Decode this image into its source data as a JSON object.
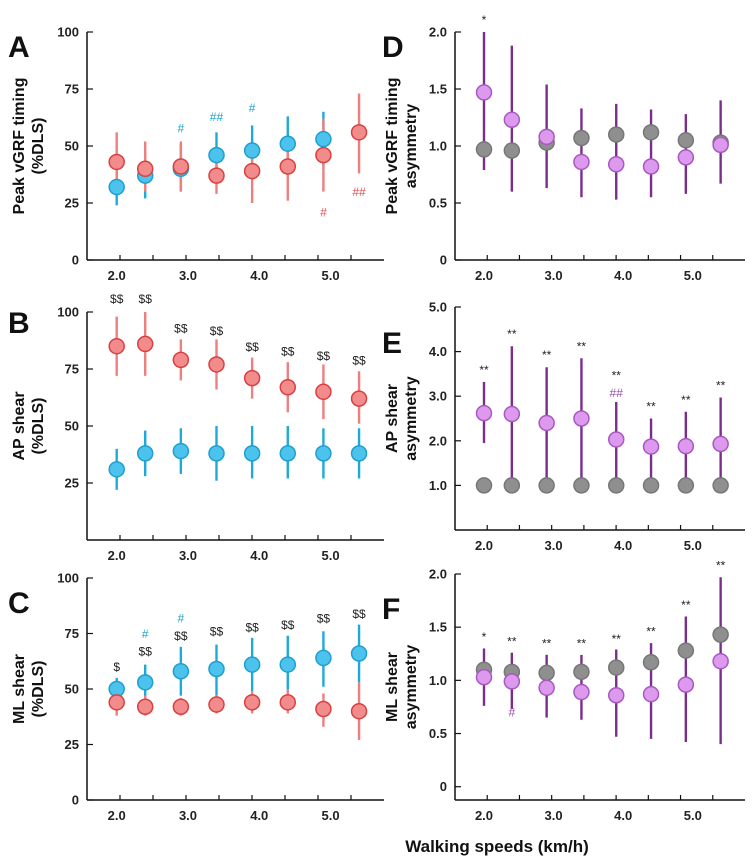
{
  "figure": {
    "x_axis_title": "Walking speeds (km/h)",
    "x_tick_labels": [
      "2.0",
      "3.0",
      "4.0",
      "5.0"
    ],
    "x_tick_values": [
      2.0,
      3.0,
      4.0,
      5.0
    ],
    "colors": {
      "blue_face": "#4cc3ec",
      "blue_edge": "#1f9fd0",
      "blue_bar": "#1eaad8",
      "red_face": "#f28b8b",
      "red_edge": "#d94040",
      "red_bar": "#ee7f7f",
      "purple_face": "#dd99ee",
      "purple_edge": "#a858c0",
      "purple_bar": "#7a2e8c",
      "gray_face": "#8f8f8f",
      "gray_edge": "#777777",
      "black_text": "#222222",
      "teal_text": "#1aa2cf",
      "red_text": "#e05050",
      "purple_text": "#9a4fb0"
    }
  },
  "chart_data": [
    {
      "panel": "A",
      "type": "scatter",
      "ylabel": [
        "Peak vGRF timing",
        "(%DLS)"
      ],
      "x": [
        2.0,
        2.4,
        2.9,
        3.4,
        3.9,
        4.4,
        4.9,
        5.4
      ],
      "ylim": [
        0,
        100
      ],
      "yticks": [
        0,
        25,
        50,
        75,
        100
      ],
      "ytick_labels": [
        "0",
        "25",
        "50",
        "75",
        "100"
      ],
      "series": [
        {
          "name": "blue",
          "color": "blue",
          "values": [
            32,
            37,
            40,
            46,
            48,
            51,
            53,
            null
          ],
          "low": [
            24,
            27,
            30,
            36,
            36,
            38,
            41,
            null
          ],
          "high": [
            40,
            47,
            51,
            56,
            59,
            63,
            65,
            null
          ]
        },
        {
          "name": "red",
          "color": "red",
          "values": [
            43,
            40,
            41,
            37,
            39,
            41,
            46,
            56
          ],
          "low": [
            33,
            30,
            30,
            29,
            25,
            26,
            30,
            38
          ],
          "high": [
            56,
            52,
            52,
            46,
            51,
            53,
            62,
            73
          ]
        }
      ],
      "annotations": [
        {
          "text": "#",
          "color": "teal",
          "x": 2.9,
          "y": 56
        },
        {
          "text": "##",
          "color": "teal",
          "x": 3.4,
          "y": 61
        },
        {
          "text": "#",
          "color": "teal",
          "x": 3.9,
          "y": 65
        },
        {
          "text": "#",
          "color": "red",
          "x": 4.9,
          "y": 19
        },
        {
          "text": "##",
          "color": "red",
          "x": 5.4,
          "y": 28
        }
      ]
    },
    {
      "panel": "B",
      "type": "scatter",
      "ylabel": [
        "AP shear",
        "(%DLS)"
      ],
      "x": [
        2.0,
        2.4,
        2.9,
        3.4,
        3.9,
        4.4,
        4.9,
        5.4
      ],
      "ylim": [
        0,
        100
      ],
      "yticks": [
        25,
        50,
        75,
        100
      ],
      "ytick_labels": [
        "25",
        "50",
        "75",
        "100"
      ],
      "series": [
        {
          "name": "red",
          "color": "red",
          "values": [
            85,
            86,
            79,
            77,
            71,
            67,
            65,
            62
          ],
          "low": [
            72,
            72,
            70,
            66,
            62,
            56,
            53,
            51
          ],
          "high": [
            98,
            100,
            88,
            88,
            80,
            78,
            77,
            74
          ]
        },
        {
          "name": "blue",
          "color": "blue",
          "values": [
            31,
            38,
            39,
            38,
            38,
            38,
            38,
            38
          ],
          "low": [
            22,
            28,
            29,
            26,
            27,
            27,
            27,
            27
          ],
          "high": [
            40,
            48,
            49,
            50,
            50,
            50,
            49,
            49
          ]
        }
      ],
      "annotations": [
        {
          "text": "$$",
          "color": "black",
          "x": 2.0,
          "y": 104
        },
        {
          "text": "$$",
          "color": "black",
          "x": 2.4,
          "y": 104
        },
        {
          "text": "$$",
          "color": "black",
          "x": 2.9,
          "y": 91
        },
        {
          "text": "$$",
          "color": "black",
          "x": 3.4,
          "y": 90
        },
        {
          "text": "$$",
          "color": "black",
          "x": 3.9,
          "y": 83
        },
        {
          "text": "$$",
          "color": "black",
          "x": 4.4,
          "y": 81
        },
        {
          "text": "$$",
          "color": "black",
          "x": 4.9,
          "y": 79
        },
        {
          "text": "$$",
          "color": "black",
          "x": 5.4,
          "y": 77
        }
      ]
    },
    {
      "panel": "C",
      "type": "scatter",
      "ylabel": [
        "ML shear",
        "(%DLS)"
      ],
      "x": [
        2.0,
        2.4,
        2.9,
        3.4,
        3.9,
        4.4,
        4.9,
        5.4
      ],
      "ylim": [
        0,
        100
      ],
      "yticks": [
        0,
        25,
        50,
        75,
        100
      ],
      "ytick_labels": [
        "0",
        "25",
        "50",
        "75",
        "100"
      ],
      "series": [
        {
          "name": "blue",
          "color": "blue",
          "values": [
            50,
            53,
            58,
            59,
            61,
            61,
            64,
            66
          ],
          "low": [
            45,
            45,
            47,
            47,
            49,
            49,
            51,
            53
          ],
          "high": [
            55,
            61,
            69,
            70,
            73,
            74,
            76,
            79
          ]
        },
        {
          "name": "red",
          "color": "red",
          "values": [
            44,
            42,
            42,
            43,
            44,
            44,
            41,
            40
          ],
          "low": [
            38,
            38,
            38,
            39,
            39,
            39,
            33,
            27
          ],
          "high": [
            50,
            47,
            46,
            47,
            49,
            50,
            48,
            53
          ]
        }
      ],
      "annotations": [
        {
          "text": "$",
          "color": "black",
          "x": 2.0,
          "y": 58
        },
        {
          "text": "#",
          "color": "teal",
          "x": 2.4,
          "y": 73
        },
        {
          "text": "$$",
          "color": "black",
          "x": 2.4,
          "y": 65
        },
        {
          "text": "#",
          "color": "teal",
          "x": 2.9,
          "y": 80
        },
        {
          "text": "$$",
          "color": "black",
          "x": 2.9,
          "y": 72
        },
        {
          "text": "$$",
          "color": "black",
          "x": 3.4,
          "y": 74
        },
        {
          "text": "$$",
          "color": "black",
          "x": 3.9,
          "y": 76
        },
        {
          "text": "$$",
          "color": "black",
          "x": 4.4,
          "y": 77
        },
        {
          "text": "$$",
          "color": "black",
          "x": 4.9,
          "y": 80
        },
        {
          "text": "$$",
          "color": "black",
          "x": 5.4,
          "y": 82
        }
      ]
    },
    {
      "panel": "D",
      "type": "scatter",
      "ylabel": [
        "Peak vGRF timing",
        "asymmetry"
      ],
      "x": [
        2.0,
        2.4,
        2.9,
        3.4,
        3.9,
        4.4,
        4.9,
        5.4
      ],
      "ylim": [
        0,
        2.0
      ],
      "yticks": [
        0,
        0.5,
        1.0,
        1.5,
        2.0
      ],
      "ytick_labels": [
        "0",
        "0.5",
        "1.0",
        "1.5",
        "2.0"
      ],
      "series": [
        {
          "name": "gray",
          "color": "gray",
          "values": [
            0.97,
            0.96,
            1.03,
            1.07,
            1.1,
            1.12,
            1.05,
            1.03
          ],
          "low": [
            null,
            null,
            null,
            null,
            null,
            null,
            null,
            null
          ],
          "high": [
            null,
            null,
            null,
            null,
            null,
            null,
            null,
            null
          ]
        },
        {
          "name": "purple",
          "color": "purple",
          "values": [
            1.47,
            1.23,
            1.08,
            0.86,
            0.84,
            0.82,
            0.9,
            1.01
          ],
          "low": [
            0.79,
            0.6,
            0.63,
            0.55,
            0.53,
            0.55,
            0.58,
            0.67
          ],
          "high": [
            2.0,
            1.88,
            1.54,
            1.33,
            1.37,
            1.32,
            1.28,
            1.4
          ]
        }
      ],
      "annotations": [
        {
          "text": "*",
          "color": "black",
          "x": 2.0,
          "y": 2.07
        }
      ]
    },
    {
      "panel": "E",
      "type": "scatter",
      "ylabel": [
        "AP shear",
        "asymmetry"
      ],
      "x": [
        2.0,
        2.4,
        2.9,
        3.4,
        3.9,
        4.4,
        4.9,
        5.4
      ],
      "ylim": [
        0,
        5.0
      ],
      "yticks": [
        1.0,
        2.0,
        3.0,
        4.0,
        5.0
      ],
      "ytick_labels": [
        "1.0",
        "2.0",
        "3.0",
        "4.0",
        "5.0"
      ],
      "series": [
        {
          "name": "gray",
          "color": "gray",
          "values": [
            1.0,
            1.0,
            1.0,
            1.0,
            1.0,
            1.0,
            1.0,
            1.0
          ],
          "low": [
            null,
            null,
            null,
            null,
            null,
            null,
            null,
            null
          ],
          "high": [
            null,
            null,
            null,
            null,
            null,
            null,
            null,
            null
          ]
        },
        {
          "name": "purple",
          "color": "purple",
          "values": [
            2.62,
            2.6,
            2.4,
            2.5,
            2.03,
            1.87,
            1.88,
            1.93
          ],
          "low": [
            1.95,
            1.0,
            1.0,
            1.0,
            1.0,
            1.0,
            1.0,
            1.0
          ],
          "high": [
            3.32,
            4.12,
            3.65,
            3.85,
            2.87,
            2.5,
            2.65,
            2.97
          ]
        }
      ],
      "annotations": [
        {
          "text": "**",
          "color": "black",
          "x": 2.0,
          "y": 3.5
        },
        {
          "text": "**",
          "color": "black",
          "x": 2.4,
          "y": 4.3
        },
        {
          "text": "**",
          "color": "black",
          "x": 2.9,
          "y": 3.83
        },
        {
          "text": "**",
          "color": "black",
          "x": 3.4,
          "y": 4.03
        },
        {
          "text": "**",
          "color": "black",
          "x": 3.9,
          "y": 3.38
        },
        {
          "text": "##",
          "color": "purple",
          "x": 3.9,
          "y": 2.98
        },
        {
          "text": "**",
          "color": "black",
          "x": 4.4,
          "y": 2.68
        },
        {
          "text": "**",
          "color": "black",
          "x": 4.9,
          "y": 2.83
        },
        {
          "text": "**",
          "color": "black",
          "x": 5.4,
          "y": 3.15
        }
      ]
    },
    {
      "panel": "F",
      "type": "scatter",
      "ylabel": [
        "ML shear",
        "asymmetry"
      ],
      "x": [
        2.0,
        2.4,
        2.9,
        3.4,
        3.9,
        4.4,
        4.9,
        5.4
      ],
      "ylim": [
        -0.125,
        2.0
      ],
      "yticks": [
        0,
        0.5,
        1.0,
        1.5,
        2.0
      ],
      "ytick_labels": [
        "0",
        "0.5",
        "1.0",
        "1.5",
        "2.0"
      ],
      "series": [
        {
          "name": "gray",
          "color": "gray",
          "values": [
            1.1,
            1.08,
            1.07,
            1.08,
            1.12,
            1.17,
            1.28,
            1.43
          ],
          "low": [
            null,
            null,
            null,
            null,
            null,
            null,
            null,
            null
          ],
          "high": [
            null,
            null,
            null,
            null,
            null,
            null,
            null,
            null
          ]
        },
        {
          "name": "purple",
          "color": "purple",
          "values": [
            1.03,
            0.99,
            0.93,
            0.89,
            0.86,
            0.87,
            0.96,
            1.18
          ],
          "low": [
            0.76,
            0.73,
            0.65,
            0.63,
            0.47,
            0.45,
            0.42,
            0.4
          ],
          "high": [
            1.3,
            1.26,
            1.24,
            1.24,
            1.29,
            1.35,
            1.6,
            1.97
          ]
        }
      ],
      "annotations": [
        {
          "text": "*",
          "color": "black",
          "x": 2.0,
          "y": 1.37
        },
        {
          "text": "**",
          "color": "black",
          "x": 2.4,
          "y": 1.33
        },
        {
          "text": "#",
          "color": "purple",
          "x": 2.4,
          "y": 0.66
        },
        {
          "text": "**",
          "color": "black",
          "x": 2.9,
          "y": 1.31
        },
        {
          "text": "**",
          "color": "black",
          "x": 3.4,
          "y": 1.31
        },
        {
          "text": "**",
          "color": "black",
          "x": 3.9,
          "y": 1.35
        },
        {
          "text": "**",
          "color": "black",
          "x": 4.4,
          "y": 1.42
        },
        {
          "text": "**",
          "color": "black",
          "x": 4.9,
          "y": 1.67
        },
        {
          "text": "**",
          "color": "black",
          "x": 5.4,
          "y": 2.04
        }
      ]
    }
  ]
}
